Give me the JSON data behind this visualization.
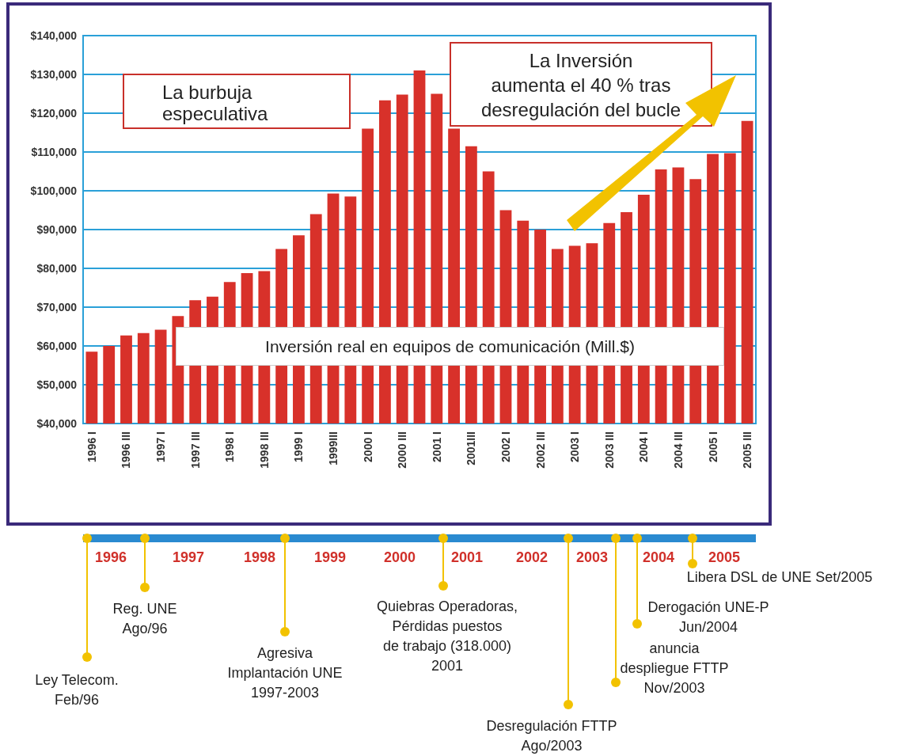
{
  "chart_data": {
    "type": "bar",
    "title": "Inversión real en equipos de comunicación (Mill.$)",
    "categories": [
      "1996 I",
      null,
      "1996 III",
      null,
      "1997 I",
      null,
      "1997 III",
      null,
      "1998 I",
      null,
      "1998 III",
      null,
      "1999 I",
      null,
      "1999III",
      null,
      "2000 I",
      null,
      "2000 III",
      null,
      "2001 I",
      null,
      "2001III",
      null,
      "2002 I",
      null,
      "2002 III",
      null,
      "2003 I",
      null,
      "2003 III",
      null,
      "2004 I",
      null,
      "2004 III",
      null,
      "2005 I",
      null,
      "2005 III"
    ],
    "values": [
      58500,
      60000,
      62700,
      63300,
      64200,
      67700,
      71800,
      72700,
      76500,
      78800,
      79300,
      85000,
      88500,
      94000,
      99300,
      98500,
      116000,
      123300,
      124800,
      131000,
      125000,
      116000,
      111500,
      105000,
      95000,
      92300,
      90000,
      85000,
      85800,
      86500,
      91700,
      94500,
      99000,
      105500,
      106000,
      103000,
      109500,
      109700,
      118000
    ],
    "color": "#d8312a",
    "ylim": [
      40000,
      140000
    ],
    "yticks": [
      {
        "value": 40000,
        "label": "$40,000"
      },
      {
        "value": 50000,
        "label": "$50,000"
      },
      {
        "value": 60000,
        "label": "$60,000"
      },
      {
        "value": 70000,
        "label": "$70,000"
      },
      {
        "value": 80000,
        "label": "$80,000"
      },
      {
        "value": 90000,
        "label": "$90,000"
      },
      {
        "value": 100000,
        "label": "$100,000"
      },
      {
        "value": 110000,
        "label": "$110,000"
      },
      {
        "value": 120000,
        "label": "$120,000"
      },
      {
        "value": 130000,
        "label": "$130,000"
      },
      {
        "value": 140000,
        "label": "$140,000"
      }
    ],
    "grid": "y",
    "annotations": [
      "La burbuja\nespeculativa",
      "La Inversión\naumenta el 40 % tras\ndesregulación del bucle",
      "1996",
      "1997",
      "1998",
      "1999",
      "2000",
      "2001",
      "2002",
      "2003",
      "2004",
      "2005",
      "Ley Telecom.\nFeb/96",
      "Reg. UNE\nAgo/96",
      "Agresiva\nImplantación UNE\n1997-2003",
      "Quiebras Operadoras,\nPérdidas puestos\nde trabajo (318.000)\n2001",
      "Desregulación FTTP\nAgo/2003",
      "anuncia\ndespliegue FTTP\nNov/2003",
      "Derogación UNE-P\nJun/2004",
      "Libera DSL de UNE Set/2005"
    ]
  }
}
